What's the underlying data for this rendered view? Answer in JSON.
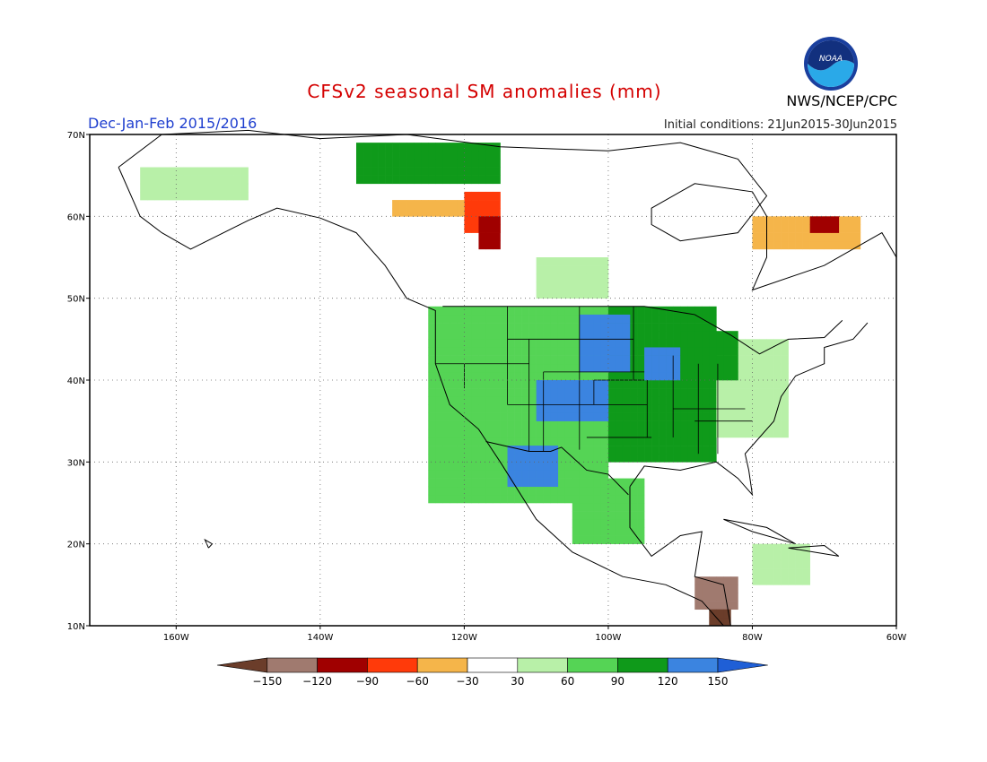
{
  "header": {
    "title": "CFSv2 seasonal SM anomalies (mm)",
    "season": "Dec-Jan-Feb 2015/2016",
    "initial_conditions": "Initial conditions: 21Jun2015-30Jun2015",
    "agency": "NWS/NCEP/CPC",
    "logo_text": "NOAA"
  },
  "map": {
    "lon_range": [
      -172,
      -60
    ],
    "lat_range": [
      10,
      70
    ],
    "lon_ticks": [
      "160W",
      "140W",
      "120W",
      "100W",
      "80W",
      "60W"
    ],
    "lat_ticks": [
      "10N",
      "20N",
      "30N",
      "40N",
      "50N",
      "60N",
      "70N"
    ]
  },
  "legend": {
    "labels": [
      "-150",
      "-120",
      "-90",
      "-60",
      "-30",
      "30",
      "60",
      "90",
      "120",
      "150"
    ],
    "colors": [
      "#6b3d2a",
      "#a07a6f",
      "#a00000",
      "#ff3a0a",
      "#f5b54a",
      "#ffffff",
      "#b8f0a8",
      "#55d455",
      "#0f9a1a",
      "#3b84e0",
      "#1f5fd6"
    ]
  }
}
